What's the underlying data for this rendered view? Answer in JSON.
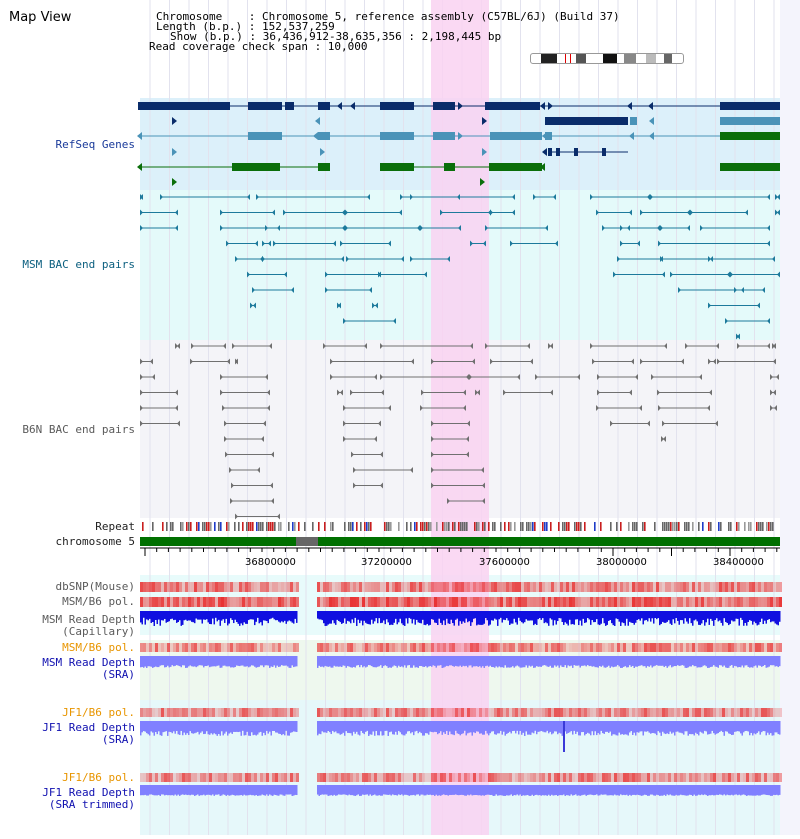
{
  "page": {
    "title": "Map View"
  },
  "header": {
    "chromosome_line": "Chromosome    : Chromosome 5, reference assembly (C57BL/6J) (Build 37)",
    "length_line": "Length (b.p.) : 152,537,259",
    "show_line": "Show (b.p.) : 36,436,912-38,635,356 : 2,198,445 bp",
    "coverage_line": "Read coverage check span : 10,000"
  },
  "tracks": {
    "refseq": "RefSeq Genes",
    "msm_bac": "MSM BAC end pairs",
    "b6n_bac": "B6N BAC end pairs",
    "repeat": "Repeat",
    "chromosome": "chromosome 5",
    "dbsnp": "dbSNP(Mouse)",
    "msm_b6_pol": "MSM/B6 pol.",
    "msm_depth_cap": "MSM Read Depth\n(Capillary)",
    "msm_b6_pol_sra": "MSM/B6 pol.",
    "msm_depth_sra": "MSM Read Depth\n(SRA)",
    "jf1_b6_pol": "JF1/B6 pol.",
    "jf1_depth_sra": "JF1 Read Depth\n(SRA)",
    "jf1_b6_pol_trim": "JF1/B6 pol.",
    "jf1_depth_trim": "JF1 Read Depth\n(SRA trimmed)"
  },
  "axis": {
    "tick_labels": [
      "36800000",
      "37200000",
      "37600000",
      "38000000",
      "38400000"
    ]
  },
  "colors": {
    "refseq_bg": "#dcf0fa",
    "msm_bg": "#e4fafa",
    "b6n_bg": "#f4f4f8",
    "selection": "#f9d2f1",
    "gene_dark": "#0a2c6a",
    "gene_mid": "#4a93b8",
    "gene_green": "#0a6e0a",
    "chromosome_green": "#007000",
    "read_depth_blue": "#1010e0",
    "read_depth_light": "#8080ff",
    "polymorphism_red": "#e83030"
  }
}
